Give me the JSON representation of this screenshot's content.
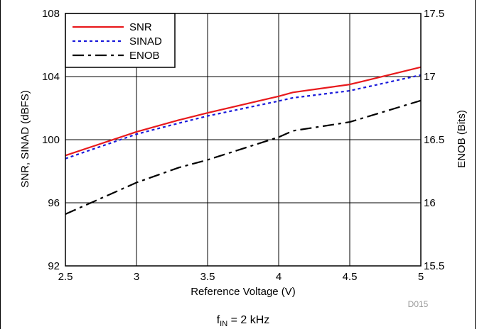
{
  "chart_data": {
    "type": "line",
    "xlabel": "Reference Voltage (V)",
    "ylabel_left": "SNR, SINAD (dBFS)",
    "ylabel_right": "ENOB (Bits)",
    "xlim": [
      2.5,
      5
    ],
    "ylim_left": [
      92,
      108
    ],
    "ylim_right": [
      15.5,
      17.5
    ],
    "x_ticks": [
      "2.5",
      "3",
      "3.5",
      "4",
      "4.5",
      "5"
    ],
    "y_left_ticks": [
      "92",
      "96",
      "100",
      "104",
      "108"
    ],
    "y_right_ticks": [
      "15.5",
      "16",
      "16.5",
      "17",
      "17.5"
    ],
    "grid": true,
    "legend_position": "top-left",
    "series": [
      {
        "name": "SNR",
        "axis": "left",
        "color": "#e8191c",
        "style": "solid",
        "x": [
          2.5,
          3.0,
          3.3,
          3.5,
          4.0,
          4.1,
          4.5,
          5.0
        ],
        "y": [
          99.0,
          100.5,
          101.25,
          101.7,
          102.75,
          103.0,
          103.5,
          104.6
        ]
      },
      {
        "name": "SINAD",
        "axis": "left",
        "color": "#1a1adb",
        "style": "dotted",
        "x": [
          2.5,
          3.0,
          3.3,
          3.5,
          4.0,
          4.1,
          4.5,
          5.0
        ],
        "y": [
          98.8,
          100.35,
          101.05,
          101.5,
          102.45,
          102.65,
          103.1,
          104.1
        ]
      },
      {
        "name": "ENOB",
        "axis": "right",
        "color": "#000000",
        "style": "dash-dot",
        "x": [
          2.5,
          3.0,
          3.3,
          3.5,
          4.0,
          4.1,
          4.5,
          5.0
        ],
        "y": [
          15.91,
          16.16,
          16.28,
          16.34,
          16.52,
          16.57,
          16.64,
          16.81
        ]
      }
    ],
    "annotation": "D015",
    "caption": {
      "prefix": "f",
      "subscript": "IN",
      "suffix": " = 2 kHz"
    }
  }
}
